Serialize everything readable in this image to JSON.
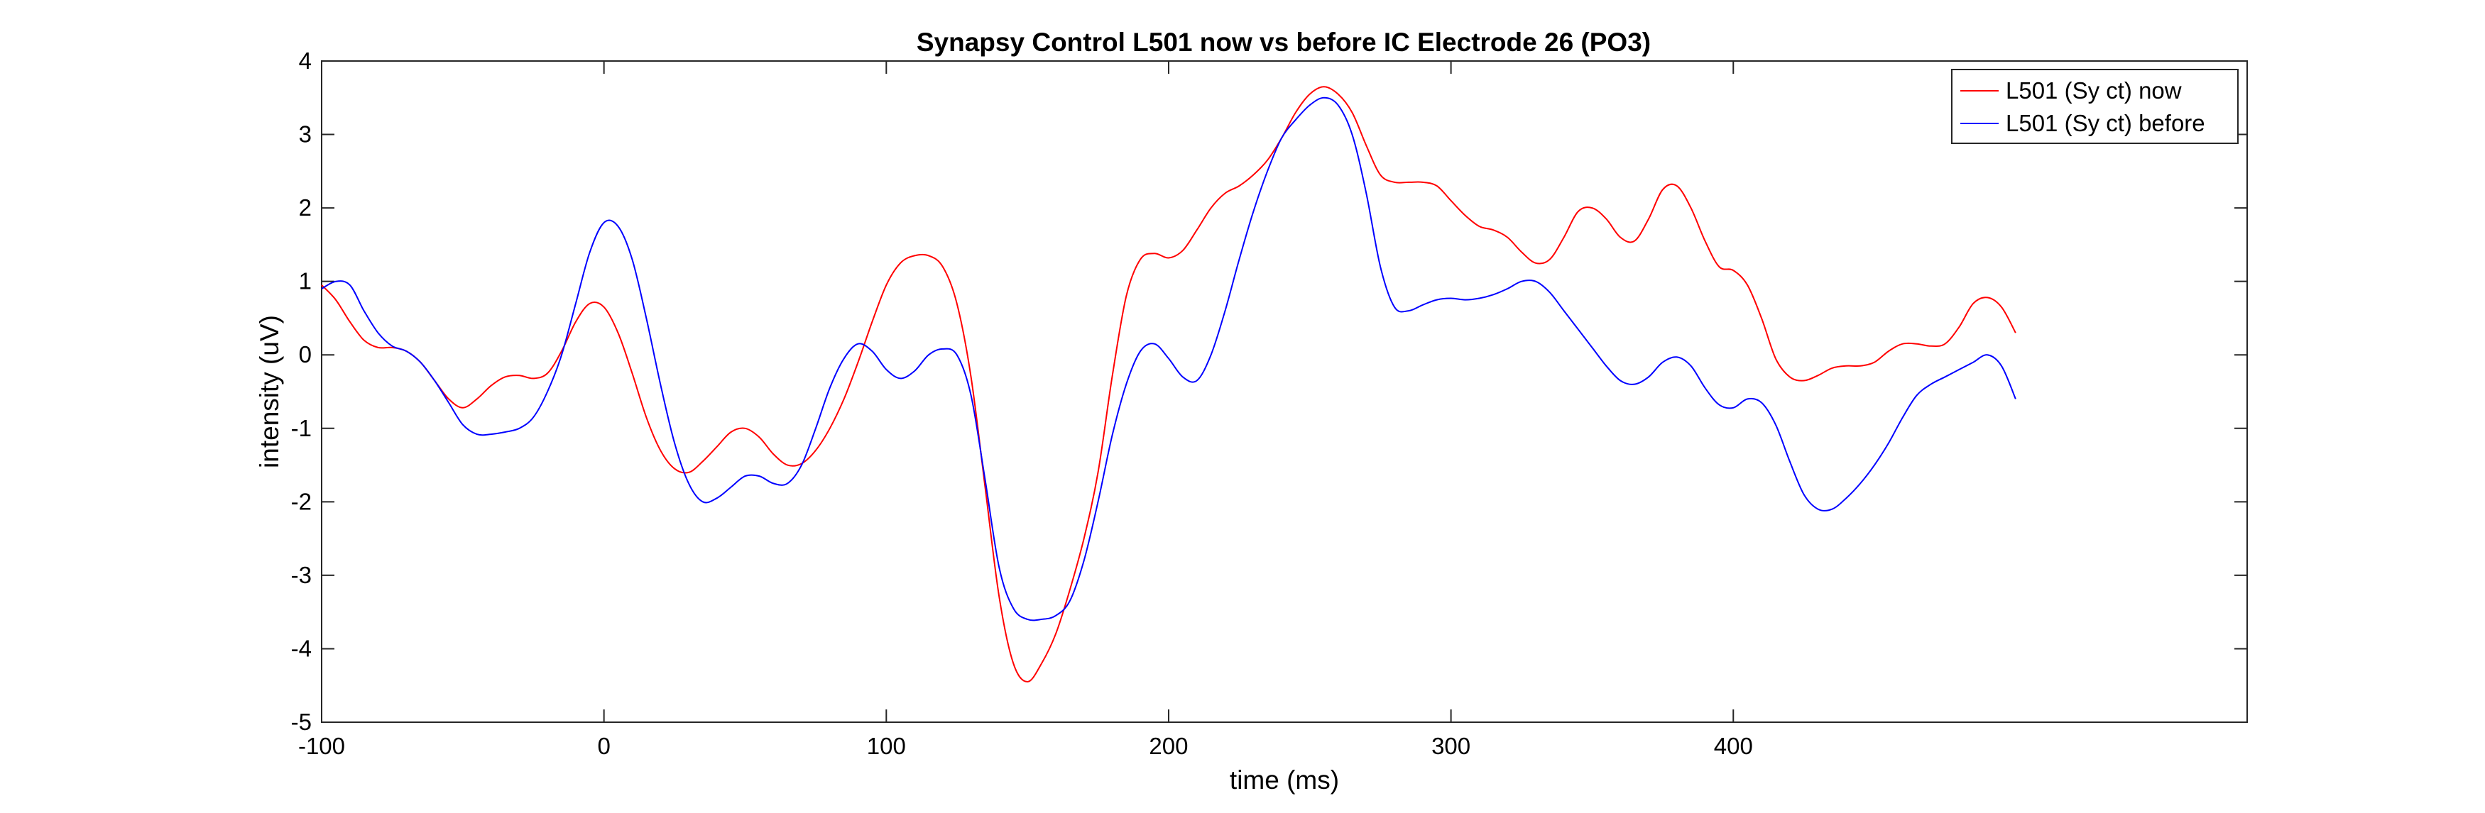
{
  "chart_data": {
    "type": "line",
    "title": "Synapsy Control L501 now vs before IC Electrode 26 (PO3)",
    "xlabel": "time (ms)",
    "ylabel": "intensity (uV)",
    "xlim": [
      -100,
      582
    ],
    "ylim": [
      -5,
      4
    ],
    "xticks": [
      -100,
      0,
      100,
      200,
      300,
      400
    ],
    "yticks": [
      -5,
      -4,
      -3,
      -2,
      -1,
      0,
      1,
      2,
      3,
      4
    ],
    "grid": false,
    "legend_position": "top-right",
    "series": [
      {
        "name": "L501 (Sy ct) now",
        "color": "#ff0000",
        "x": [
          -100,
          -95,
          -90,
          -85,
          -80,
          -75,
          -70,
          -65,
          -60,
          -55,
          -50,
          -45,
          -40,
          -35,
          -30,
          -25,
          -20,
          -15,
          -10,
          -5,
          0,
          5,
          10,
          15,
          20,
          25,
          30,
          35,
          40,
          45,
          50,
          55,
          60,
          65,
          70,
          75,
          80,
          85,
          90,
          95,
          100,
          105,
          110,
          115,
          120,
          125,
          130,
          135,
          140,
          145,
          150,
          155,
          160,
          165,
          170,
          175,
          180,
          185,
          190,
          195,
          200,
          205,
          210,
          215,
          220,
          225,
          230,
          235,
          240,
          245,
          250,
          255,
          260,
          265,
          270,
          275,
          280,
          285,
          290,
          295,
          300,
          305,
          310,
          315,
          320,
          325,
          330,
          335,
          340,
          345,
          350,
          355,
          360,
          365,
          370,
          375,
          380,
          385,
          390,
          395,
          400,
          405,
          410,
          415,
          420,
          425,
          430,
          435,
          440,
          445,
          450,
          455,
          460,
          465,
          470,
          475,
          480,
          485,
          490,
          495,
          500
        ],
        "y": [
          0.95,
          0.75,
          0.45,
          0.2,
          0.1,
          0.1,
          0.05,
          -0.1,
          -0.35,
          -0.6,
          -0.72,
          -0.6,
          -0.42,
          -0.3,
          -0.28,
          -0.32,
          -0.25,
          0.05,
          0.45,
          0.7,
          0.65,
          0.3,
          -0.25,
          -0.85,
          -1.3,
          -1.55,
          -1.6,
          -1.45,
          -1.25,
          -1.05,
          -1.0,
          -1.12,
          -1.35,
          -1.5,
          -1.48,
          -1.3,
          -1.0,
          -0.6,
          -0.1,
          0.45,
          0.95,
          1.25,
          1.35,
          1.35,
          1.2,
          0.7,
          -0.3,
          -1.8,
          -3.3,
          -4.2,
          -4.45,
          -4.2,
          -3.8,
          -3.2,
          -2.5,
          -1.6,
          -0.3,
          0.8,
          1.3,
          1.38,
          1.32,
          1.42,
          1.7,
          2.0,
          2.2,
          2.3,
          2.45,
          2.65,
          2.95,
          3.3,
          3.55,
          3.65,
          3.55,
          3.3,
          2.85,
          2.45,
          2.35,
          2.35,
          2.35,
          2.3,
          2.1,
          1.9,
          1.75,
          1.7,
          1.6,
          1.4,
          1.25,
          1.3,
          1.6,
          1.95,
          2.0,
          1.85,
          1.6,
          1.55,
          1.85,
          2.25,
          2.3,
          2.0,
          1.55,
          1.2,
          1.15,
          0.95,
          0.5,
          -0.05,
          -0.3,
          -0.35,
          -0.28,
          -0.18,
          -0.15,
          -0.15,
          -0.1,
          0.05,
          0.15,
          0.15,
          0.12,
          0.15,
          0.38,
          0.7,
          0.78,
          0.65,
          0.3
        ]
      },
      {
        "name": "L501 (Sy ct) before",
        "color": "#0000ff",
        "x": [
          -100,
          -95,
          -90,
          -85,
          -80,
          -75,
          -70,
          -65,
          -60,
          -55,
          -50,
          -45,
          -40,
          -35,
          -30,
          -25,
          -20,
          -15,
          -10,
          -5,
          0,
          5,
          10,
          15,
          20,
          25,
          30,
          35,
          40,
          45,
          50,
          55,
          60,
          65,
          70,
          75,
          80,
          85,
          90,
          95,
          100,
          105,
          110,
          115,
          120,
          125,
          130,
          135,
          140,
          145,
          150,
          155,
          160,
          165,
          170,
          175,
          180,
          185,
          190,
          195,
          200,
          205,
          210,
          215,
          220,
          225,
          230,
          235,
          240,
          245,
          250,
          255,
          260,
          265,
          270,
          275,
          280,
          285,
          290,
          295,
          300,
          305,
          310,
          315,
          320,
          325,
          330,
          335,
          340,
          345,
          350,
          355,
          360,
          365,
          370,
          375,
          380,
          385,
          390,
          395,
          400,
          405,
          410,
          415,
          420,
          425,
          430,
          435,
          440,
          445,
          450,
          455,
          460,
          465,
          470,
          475,
          480,
          485,
          490,
          495,
          500
        ],
        "y": [
          0.9,
          1.0,
          0.95,
          0.6,
          0.3,
          0.12,
          0.05,
          -0.1,
          -0.35,
          -0.65,
          -0.95,
          -1.08,
          -1.08,
          -1.05,
          -1.0,
          -0.85,
          -0.5,
          0.0,
          0.7,
          1.4,
          1.8,
          1.75,
          1.3,
          0.5,
          -0.4,
          -1.2,
          -1.75,
          -2.0,
          -1.95,
          -1.8,
          -1.65,
          -1.65,
          -1.75,
          -1.75,
          -1.5,
          -1.0,
          -0.45,
          -0.05,
          0.15,
          0.05,
          -0.2,
          -0.32,
          -0.22,
          0.0,
          0.08,
          0.0,
          -0.55,
          -1.7,
          -2.9,
          -3.45,
          -3.6,
          -3.6,
          -3.55,
          -3.35,
          -2.8,
          -2.0,
          -1.1,
          -0.4,
          0.05,
          0.15,
          -0.05,
          -0.3,
          -0.35,
          0.0,
          0.6,
          1.3,
          1.95,
          2.5,
          2.95,
          3.2,
          3.4,
          3.5,
          3.4,
          3.0,
          2.2,
          1.2,
          0.65,
          0.6,
          0.68,
          0.75,
          0.77,
          0.75,
          0.77,
          0.82,
          0.9,
          1.0,
          1.0,
          0.85,
          0.6,
          0.35,
          0.1,
          -0.15,
          -0.35,
          -0.4,
          -0.3,
          -0.1,
          -0.03,
          -0.15,
          -0.45,
          -0.68,
          -0.72,
          -0.6,
          -0.65,
          -0.95,
          -1.45,
          -1.9,
          -2.1,
          -2.1,
          -1.95,
          -1.75,
          -1.5,
          -1.2,
          -0.85,
          -0.55,
          -0.4,
          -0.3,
          -0.2,
          -0.1,
          0.0,
          -0.15,
          -0.6
        ]
      }
    ]
  }
}
